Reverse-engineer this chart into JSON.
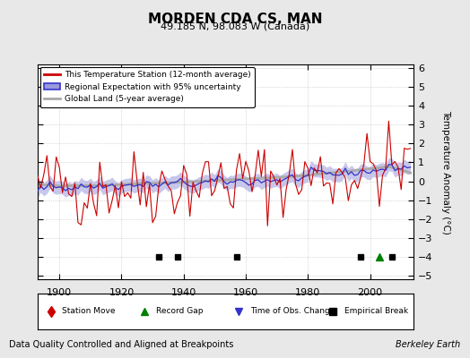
{
  "title": "MORDEN CDA CS, MAN",
  "subtitle": "49.185 N, 98.083 W (Canada)",
  "xlabel_note": "Data Quality Controlled and Aligned at Breakpoints",
  "credit": "Berkeley Earth",
  "ylabel": "Temperature Anomaly (°C)",
  "xlim": [
    1893,
    2014
  ],
  "ylim": [
    -5.2,
    6.2
  ],
  "yticks": [
    -5,
    -4,
    -3,
    -2,
    -1,
    0,
    1,
    2,
    3,
    4,
    5,
    6
  ],
  "xticks": [
    1900,
    1920,
    1940,
    1960,
    1980,
    2000
  ],
  "seed": 42,
  "start_year": 1893,
  "end_year": 2013,
  "bg_color": "#e8e8e8",
  "plot_bg_color": "#ffffff",
  "red_color": "#cc0000",
  "blue_color": "#3333cc",
  "blue_fill_color": "#9999dd",
  "gray_color": "#aaaaaa",
  "legend_labels": [
    "This Temperature Station (12-month average)",
    "Regional Expectation with 95% uncertainty",
    "Global Land (5-year average)"
  ],
  "marker_year_empirical": [
    1932,
    1938,
    1957,
    1997,
    2007
  ],
  "marker_year_record_gap": [
    2003
  ],
  "marker_year_obs_change": [],
  "marker_y": -4.0
}
